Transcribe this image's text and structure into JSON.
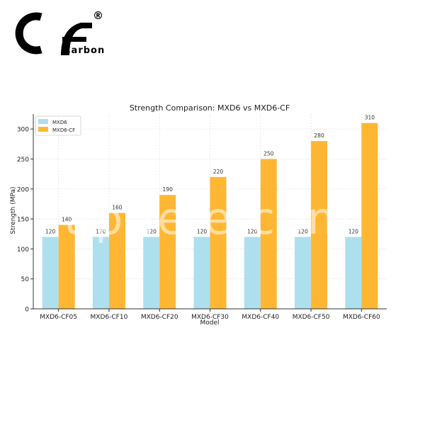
{
  "logo": {
    "word": "Carbon",
    "registered": "®",
    "monogram": "CF",
    "color": "#000000"
  },
  "watermark": "ap.le.e.com",
  "chart_data": {
    "type": "bar",
    "title": "Strength Comparison: MXD6 vs MXD6-CF",
    "xlabel": "Model",
    "ylabel": "Strength (MPa)",
    "categories": [
      "MXD6-CF05",
      "MXD6-CF10",
      "MXD6-CF20",
      "MXD6-CF30",
      "MXD6-CF40",
      "MXD6-CF50",
      "MXD6-CF60"
    ],
    "series": [
      {
        "name": "MXD6",
        "color": "#ADDFEE",
        "values": [
          120,
          120,
          120,
          120,
          120,
          120,
          120
        ]
      },
      {
        "name": "MXD6-CF",
        "color": "#FFB733",
        "values": [
          140,
          160,
          190,
          220,
          250,
          280,
          310
        ]
      }
    ],
    "ylim": [
      0,
      325
    ],
    "yticks": [
      0,
      50,
      100,
      150,
      200,
      250,
      300
    ],
    "grid": true,
    "legend": "top-left"
  }
}
